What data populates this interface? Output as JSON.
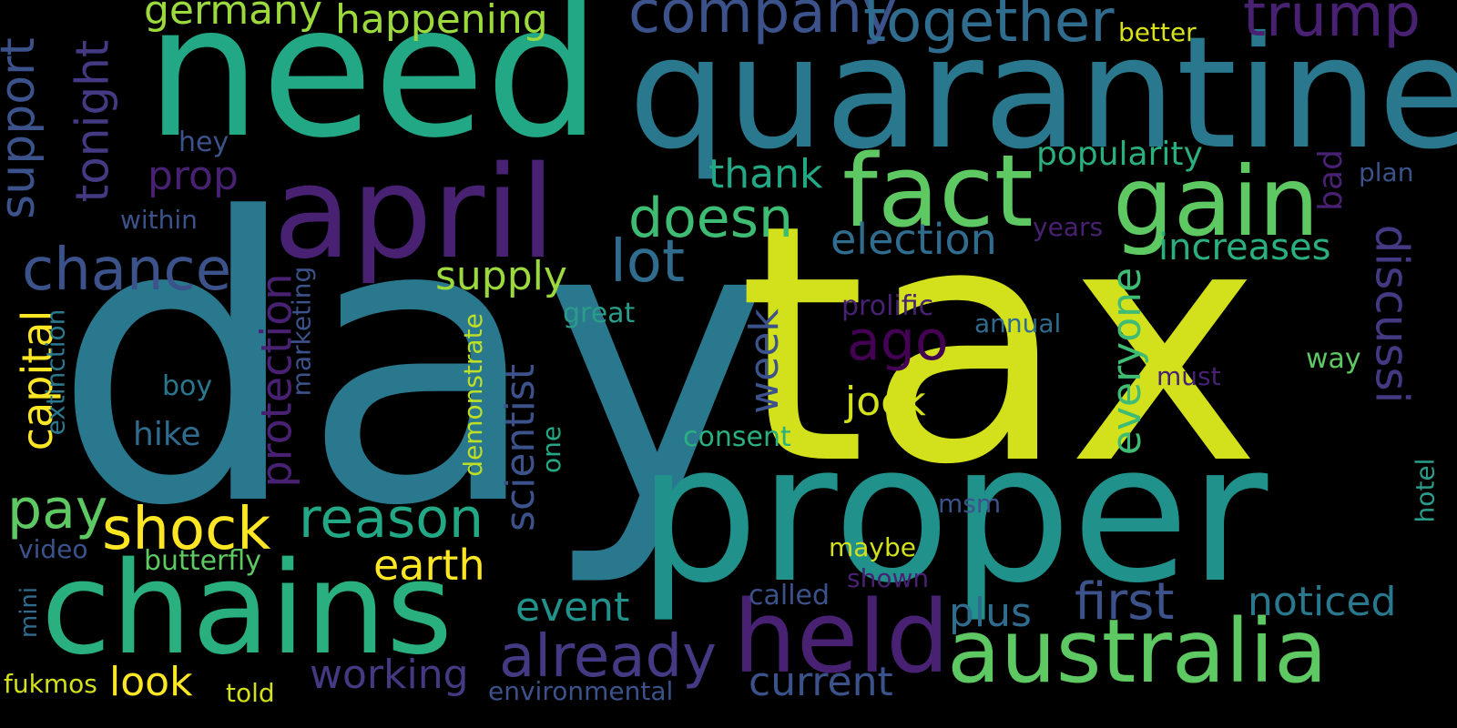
{
  "background": "#000000",
  "palette": {
    "yellow": "#d2e11b",
    "brightyellow": "#fde725",
    "lime": "#9bd93c",
    "green": "#5ec962",
    "green2": "#3fbc73",
    "teal": "#2a9d8a",
    "teal2": "#21918c",
    "blue": "#2f6c8e",
    "blue2": "#3b528b",
    "indigo": "#443a83",
    "purple": "#482173",
    "purple2": "#440154"
  },
  "words": [
    "day",
    "tax",
    "need",
    "quarantine",
    "proper",
    "april",
    "chains",
    "fact",
    "gain",
    "held",
    "australia",
    "company",
    "together",
    "trump",
    "germany",
    "happening",
    "better",
    "support",
    "tonight",
    "hey",
    "prop",
    "thank",
    "popularity",
    "within",
    "doesn",
    "election",
    "bad",
    "plan",
    "chance",
    "lot",
    "supply",
    "years",
    "increases",
    "discussi",
    "ago",
    "protection",
    "marketing",
    "prolific",
    "great",
    "annual",
    "everyone",
    "capital",
    "extinction",
    "demonstrate",
    "week",
    "scientist",
    "boy",
    "must",
    "way",
    "jock",
    "hike",
    "consent",
    "one",
    "pay",
    "shock",
    "reason",
    "msm",
    "hotel",
    "video",
    "butterfly",
    "earth",
    "maybe",
    "shown",
    "event",
    "first",
    "noticed",
    "called",
    "plus",
    "mini",
    "already",
    "look",
    "working",
    "current",
    "fukmos",
    "told",
    "environmental"
  ]
}
